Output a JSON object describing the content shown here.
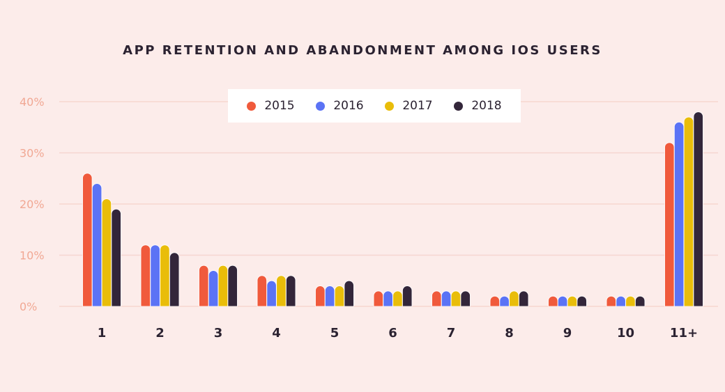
{
  "chart_data": {
    "type": "bar",
    "title": "APP RETENTION AND ABANDONMENT AMONG IOS USERS",
    "xlabel": "",
    "ylabel": "",
    "ylim": [
      0,
      40
    ],
    "yticks": [
      "0%",
      "10%",
      "20%",
      "30%",
      "40%"
    ],
    "ytick_values": [
      0,
      10,
      20,
      30,
      40
    ],
    "grid": true,
    "legend_position": "top-center",
    "categories": [
      "1",
      "2",
      "3",
      "4",
      "5",
      "6",
      "7",
      "8",
      "9",
      "10",
      "11+"
    ],
    "series": [
      {
        "name": "2015",
        "color": "#f05a3c",
        "values": [
          26,
          12,
          8,
          6,
          4,
          3,
          3,
          2,
          2,
          2,
          32
        ]
      },
      {
        "name": "2016",
        "color": "#5b73f5",
        "values": [
          24,
          12,
          7,
          5,
          4,
          3,
          3,
          2,
          2,
          2,
          36
        ]
      },
      {
        "name": "2017",
        "color": "#e9bd0a",
        "values": [
          21,
          12,
          8,
          6,
          4,
          3,
          3,
          3,
          2,
          2,
          37
        ]
      },
      {
        "name": "2018",
        "color": "#33263a",
        "values": [
          19,
          10.5,
          8,
          6,
          5,
          4,
          3,
          3,
          2,
          2,
          38
        ]
      }
    ]
  },
  "colors": {
    "background": "#fcecea",
    "tick_label": "#f1a894",
    "grid": "#f6d6d0",
    "text": "#2b2231"
  }
}
